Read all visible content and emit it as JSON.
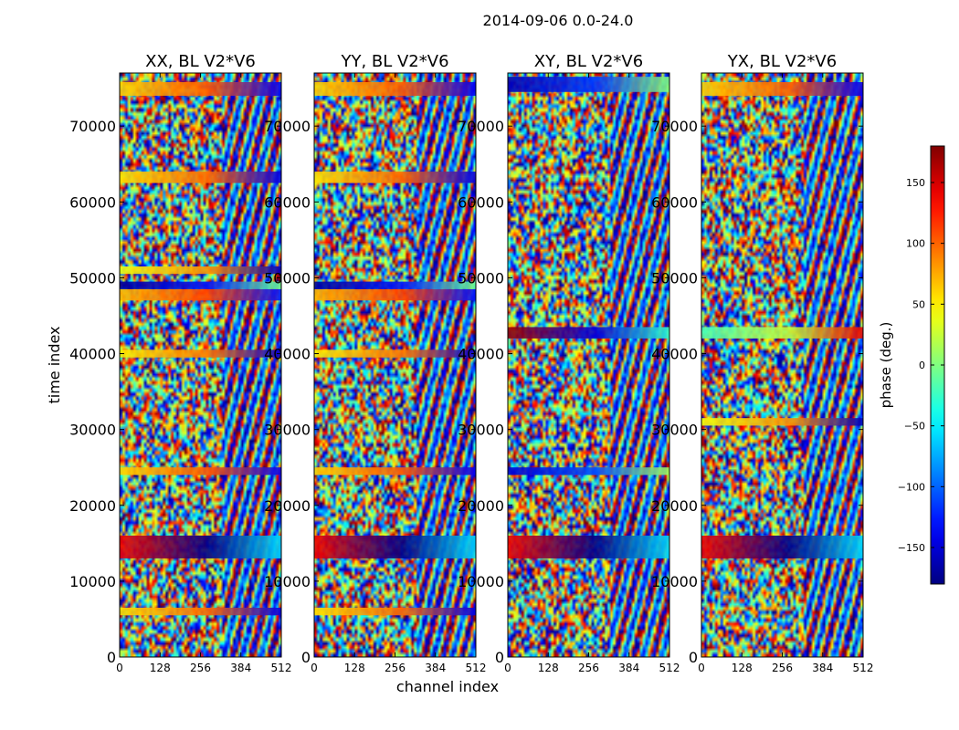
{
  "figure_title": "2014-09-06 0.0-24.0",
  "shared_xlabel": "channel index",
  "shared_ylabel": "time index",
  "chart_data": [
    {
      "type": "heatmap",
      "title": "XX, BL V2*V6",
      "xlim": [
        0,
        512
      ],
      "ylim": [
        0,
        77000
      ],
      "xticks": [
        0,
        128,
        256,
        384,
        512
      ],
      "yticks": [
        0,
        10000,
        20000,
        30000,
        40000,
        50000,
        60000,
        70000
      ],
      "value_range": [
        -180,
        180
      ],
      "bands": [
        {
          "time_start": 74000,
          "time_end": 75800,
          "phase_deg": 60
        },
        {
          "time_start": 62500,
          "time_end": 64000,
          "phase_deg": 55
        },
        {
          "time_start": 47000,
          "time_end": 48500,
          "phase_deg": 70
        },
        {
          "time_start": 48500,
          "time_end": 49500,
          "phase_deg": -170
        },
        {
          "time_start": 50500,
          "time_end": 51500,
          "phase_deg": 40
        },
        {
          "time_start": 39500,
          "time_end": 40500,
          "phase_deg": 50
        },
        {
          "time_start": 24000,
          "time_end": 25000,
          "phase_deg": 60
        },
        {
          "time_start": 13000,
          "time_end": 16000,
          "phase_deg": 140
        },
        {
          "time_start": 5500,
          "time_end": 6500,
          "phase_deg": 55
        }
      ]
    },
    {
      "type": "heatmap",
      "title": "YY, BL V2*V6",
      "xlim": [
        0,
        512
      ],
      "ylim": [
        0,
        77000
      ],
      "xticks": [
        0,
        128,
        256,
        384,
        512
      ],
      "yticks": [
        0,
        10000,
        20000,
        30000,
        40000,
        50000,
        60000,
        70000
      ],
      "value_range": [
        -180,
        180
      ],
      "bands": [
        {
          "time_start": 74000,
          "time_end": 75800,
          "phase_deg": 60
        },
        {
          "time_start": 62500,
          "time_end": 64000,
          "phase_deg": 55
        },
        {
          "time_start": 47000,
          "time_end": 48500,
          "phase_deg": 70
        },
        {
          "time_start": 48500,
          "time_end": 49500,
          "phase_deg": -170
        },
        {
          "time_start": 39500,
          "time_end": 40500,
          "phase_deg": 50
        },
        {
          "time_start": 24000,
          "time_end": 25000,
          "phase_deg": 60
        },
        {
          "time_start": 13000,
          "time_end": 16000,
          "phase_deg": 140
        },
        {
          "time_start": 5500,
          "time_end": 6500,
          "phase_deg": 55
        }
      ]
    },
    {
      "type": "heatmap",
      "title": "XY, BL V2*V6",
      "xlim": [
        0,
        512
      ],
      "ylim": [
        0,
        77000
      ],
      "xticks": [
        0,
        128,
        256,
        384,
        512
      ],
      "yticks": [
        0,
        10000,
        20000,
        30000,
        40000,
        50000,
        60000,
        70000
      ],
      "value_range": [
        -180,
        180
      ],
      "bands": [
        {
          "time_start": 74500,
          "time_end": 76500,
          "phase_deg": -160
        },
        {
          "time_start": 42000,
          "time_end": 43500,
          "phase_deg": 170
        },
        {
          "time_start": 24000,
          "time_end": 25000,
          "phase_deg": -150
        },
        {
          "time_start": 13000,
          "time_end": 16000,
          "phase_deg": 140
        }
      ]
    },
    {
      "type": "heatmap",
      "title": "YX, BL V2*V6",
      "xlim": [
        0,
        512
      ],
      "ylim": [
        0,
        77000
      ],
      "xticks": [
        0,
        128,
        256,
        384,
        512
      ],
      "yticks": [
        0,
        10000,
        20000,
        30000,
        40000,
        50000,
        60000,
        70000
      ],
      "value_range": [
        -180,
        180
      ],
      "bands": [
        {
          "time_start": 74000,
          "time_end": 75800,
          "phase_deg": 60
        },
        {
          "time_start": 42000,
          "time_end": 43500,
          "phase_deg": -20
        },
        {
          "time_start": 30500,
          "time_end": 31500,
          "phase_deg": 40
        },
        {
          "time_start": 13000,
          "time_end": 16000,
          "phase_deg": 140
        }
      ]
    }
  ],
  "colorbar": {
    "label": "phase (deg.)",
    "range": [
      -180,
      180
    ],
    "ticks": [
      150,
      100,
      50,
      0,
      -50,
      -100,
      -150
    ],
    "tick_labels": [
      "150",
      "100",
      "50",
      "0",
      "−50",
      "−100",
      "−150"
    ],
    "colormap": "jet"
  }
}
